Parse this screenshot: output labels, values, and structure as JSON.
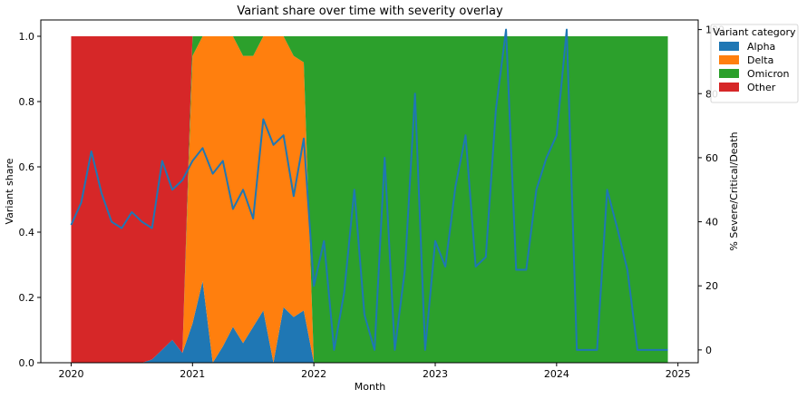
{
  "chart_data": {
    "type": "area",
    "title": "Variant share over time with severity overlay",
    "xlabel": "Month",
    "ylabel": "Variant share",
    "y2label": "% Severe/Critical/Death",
    "x_start": "2020-01",
    "x_end": "2024-12",
    "xlim": [
      "2019-10",
      "2025-03"
    ],
    "ylim": [
      0,
      1.05
    ],
    "y2lim": [
      -4,
      103
    ],
    "xticks": [
      "2020",
      "2021",
      "2022",
      "2023",
      "2024",
      "2025"
    ],
    "yticks": [
      "0.0",
      "0.2",
      "0.4",
      "0.6",
      "0.8",
      "1.0"
    ],
    "y2ticks": [
      "0",
      "20",
      "40",
      "60",
      "80",
      "100"
    ],
    "legend": {
      "title": "Variant category",
      "placement": "top-right"
    },
    "series": [
      {
        "name": "Alpha",
        "color": "#1f77b4",
        "values": [
          0,
          0,
          0,
          0,
          0,
          0,
          0,
          0,
          0.01,
          0.04,
          0.07,
          0.03,
          0.12,
          0.25,
          0,
          0.05,
          0.11,
          0.06,
          0.11,
          0.16,
          0,
          0.17,
          0.14,
          0.16,
          0,
          0,
          0,
          0,
          0,
          0,
          0,
          0,
          0,
          0,
          0,
          0,
          0,
          0,
          0,
          0,
          0,
          0,
          0,
          0,
          0,
          0,
          0,
          0,
          0,
          0,
          0,
          0,
          0,
          0,
          0,
          0,
          0,
          0,
          0,
          0
        ]
      },
      {
        "name": "Delta",
        "color": "#ff7f0e",
        "values": [
          0,
          0,
          0,
          0,
          0,
          0,
          0,
          0,
          0,
          0,
          0,
          0,
          0.82,
          0.75,
          1,
          0.95,
          0.89,
          0.88,
          0.83,
          0.84,
          1,
          0.83,
          0.8,
          0.76,
          0,
          0,
          0,
          0,
          0,
          0,
          0,
          0,
          0,
          0,
          0,
          0,
          0,
          0,
          0,
          0,
          0,
          0,
          0,
          0,
          0,
          0,
          0,
          0,
          0,
          0,
          0,
          0,
          0,
          0,
          0,
          0,
          0,
          0,
          0,
          0
        ]
      },
      {
        "name": "Omicron",
        "color": "#2ca02c",
        "values": [
          0,
          0,
          0,
          0,
          0,
          0,
          0,
          0,
          0,
          0,
          0,
          0,
          0.06,
          0,
          0,
          0,
          0,
          0.06,
          0.06,
          0,
          0,
          0,
          0.06,
          0.08,
          1,
          1,
          1,
          1,
          1,
          1,
          1,
          1,
          1,
          1,
          1,
          1,
          1,
          1,
          1,
          1,
          1,
          1,
          1,
          1,
          1,
          1,
          1,
          1,
          1,
          1,
          1,
          1,
          1,
          1,
          1,
          1,
          1,
          1,
          1,
          1
        ]
      },
      {
        "name": "Other",
        "color": "#d62728",
        "values": [
          1,
          1,
          1,
          1,
          1,
          1,
          1,
          1,
          0.99,
          0.96,
          0.93,
          0.97,
          0,
          0,
          0,
          0,
          0,
          0,
          0,
          0,
          0,
          0,
          0,
          0,
          0,
          0,
          0,
          0,
          0,
          0,
          0,
          0,
          0,
          0,
          0,
          0,
          0,
          0,
          0,
          0,
          0,
          0,
          0,
          0,
          0,
          0,
          0,
          0,
          0,
          0,
          0,
          0,
          0,
          0,
          0,
          0,
          0,
          0,
          0,
          0
        ]
      }
    ],
    "severity": {
      "name": "% Severe/Critical/Death",
      "color": "#1f77b4",
      "values": [
        39,
        46,
        62,
        49,
        40,
        38,
        43,
        40,
        38,
        59,
        50,
        53,
        59,
        63,
        55,
        59,
        44,
        50,
        41,
        72,
        64,
        67,
        48,
        66,
        20,
        34,
        0,
        18,
        50,
        11,
        0,
        60,
        0,
        25,
        80,
        0,
        34,
        26,
        51,
        67,
        26,
        29,
        75,
        100,
        25,
        25,
        50,
        60,
        67,
        100,
        0,
        0,
        0,
        50,
        38,
        25,
        0,
        0,
        0,
        0
      ]
    }
  }
}
